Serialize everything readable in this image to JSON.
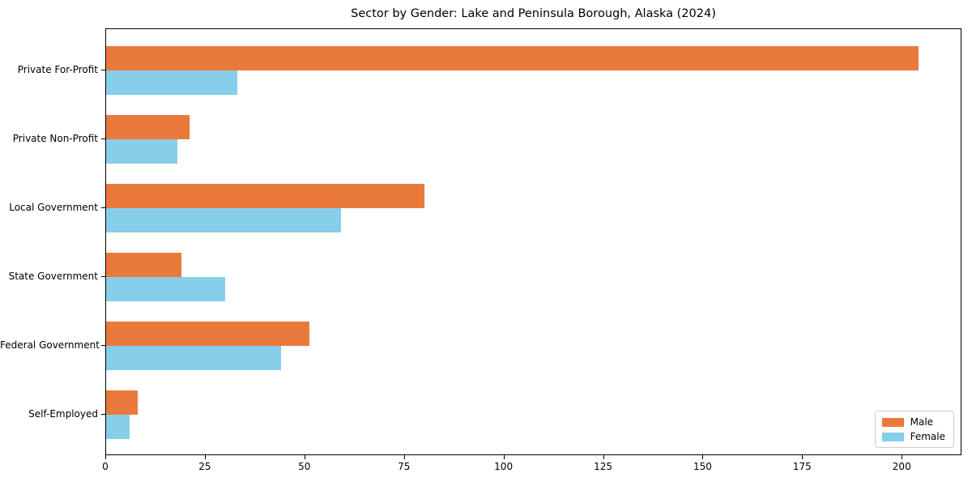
{
  "chart_data": {
    "type": "bar",
    "orientation": "horizontal",
    "title": "Sector by Gender: Lake and Peninsula Borough, Alaska (2024)",
    "xlabel": "",
    "ylabel": "",
    "categories": [
      "Private For-Profit",
      "Private Non-Profit",
      "Local Government",
      "State Government",
      "Federal Government",
      "Self-Employed"
    ],
    "series": [
      {
        "name": "Male",
        "color": "#e97a3c",
        "values": [
          204,
          21,
          80,
          19,
          51,
          8
        ]
      },
      {
        "name": "Female",
        "color": "#87ceeb",
        "values": [
          33,
          18,
          59,
          30,
          44,
          6
        ]
      }
    ],
    "xticks": [
      0,
      25,
      50,
      75,
      100,
      125,
      150,
      175,
      200
    ],
    "xlim": [
      0,
      215
    ],
    "grid": false,
    "legend_position": "lower right"
  }
}
